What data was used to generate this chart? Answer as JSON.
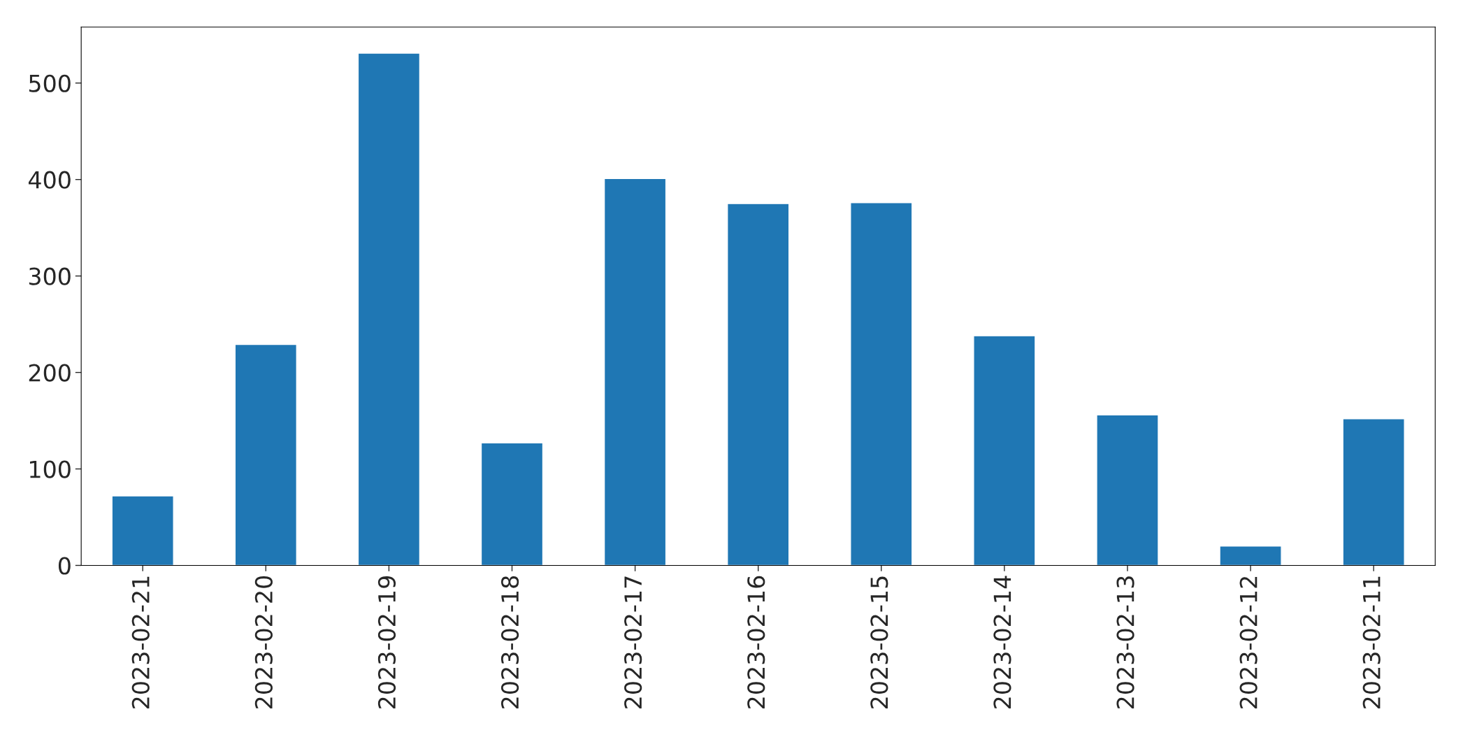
{
  "chart_data": {
    "type": "bar",
    "categories": [
      "2023-02-21",
      "2023-02-20",
      "2023-02-19",
      "2023-02-18",
      "2023-02-17",
      "2023-02-16",
      "2023-02-15",
      "2023-02-14",
      "2023-02-13",
      "2023-02-12",
      "2023-02-11"
    ],
    "values": [
      72,
      229,
      531,
      127,
      401,
      375,
      376,
      238,
      156,
      20,
      152
    ],
    "color": "#1f77b4",
    "ylim": [
      0,
      558
    ],
    "yticks": [
      0,
      100,
      200,
      300,
      400,
      500
    ],
    "grid": false,
    "legend": false
  }
}
